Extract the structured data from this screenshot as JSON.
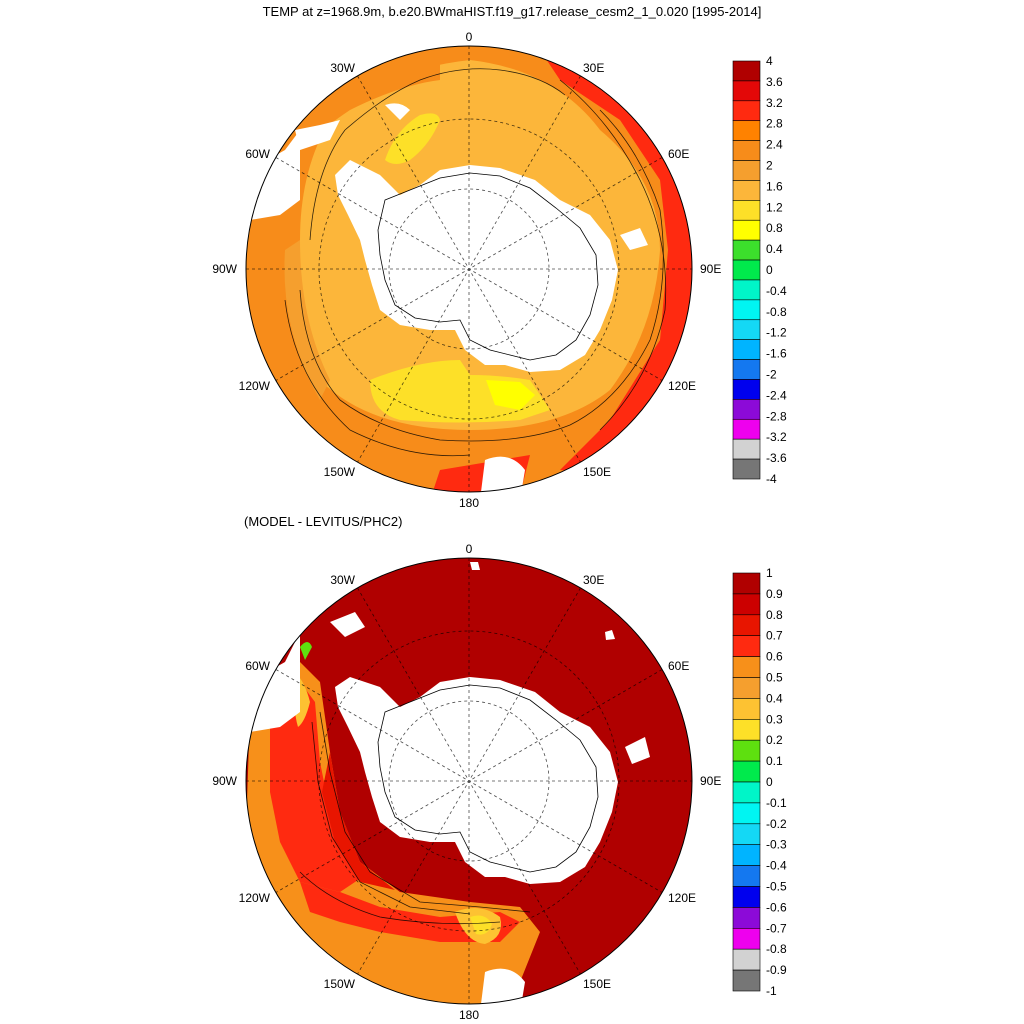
{
  "titles": {
    "top": "TEMP at z=1968.9m, b.e20.BWmaHIST.f19_g17.release_cesm2_1_0.020 [1995-2014]",
    "bottom": "(MODEL - LEVITUS/PHC2)"
  },
  "longitude_labels": [
    "0",
    "30E",
    "60E",
    "90E",
    "120E",
    "150E",
    "180",
    "150W",
    "120W",
    "90W",
    "60W",
    "30W"
  ],
  "panels": [
    {
      "id": "model-temperature",
      "colorbar": {
        "labels": [
          "4",
          "3.6",
          "3.2",
          "2.8",
          "2.4",
          "2",
          "1.6",
          "1.2",
          "0.8",
          "0.4",
          "0",
          "-0.4",
          "-0.8",
          "-1.2",
          "-1.6",
          "-2",
          "-2.4",
          "-2.8",
          "-3.2",
          "-3.6",
          "-4"
        ],
        "colors": [
          "#b00000",
          "#e30808",
          "#ff2a10",
          "#ff8200",
          "#f78c1a",
          "#f59f2e",
          "#fcb63a",
          "#fde028",
          "#ffff00",
          "#3cdf2c",
          "#00ea4c",
          "#00f5c8",
          "#00f5f2",
          "#14d8f5",
          "#00b4ff",
          "#1478f0",
          "#0000ee",
          "#8c0ad8",
          "#ee00ee",
          "#d2d2d2",
          "#767676"
        ]
      }
    },
    {
      "id": "model-minus-levitus",
      "colorbar": {
        "labels": [
          "1",
          "0.9",
          "0.8",
          "0.7",
          "0.6",
          "0.5",
          "0.4",
          "0.3",
          "0.2",
          "0.1",
          "0",
          "-0.1",
          "-0.2",
          "-0.3",
          "-0.4",
          "-0.5",
          "-0.6",
          "-0.7",
          "-0.8",
          "-0.9",
          "-1"
        ],
        "colors": [
          "#b00000",
          "#cc0000",
          "#e81500",
          "#ff2a10",
          "#f7901a",
          "#f59f2e",
          "#fdc232",
          "#fde028",
          "#5ee00f",
          "#00ea4c",
          "#00f5c8",
          "#00f5f2",
          "#14d8f5",
          "#00b4ff",
          "#1478f0",
          "#0000ee",
          "#8c0ad8",
          "#ee00ee",
          "#d2d2d2",
          "#767676"
        ]
      }
    }
  ]
}
